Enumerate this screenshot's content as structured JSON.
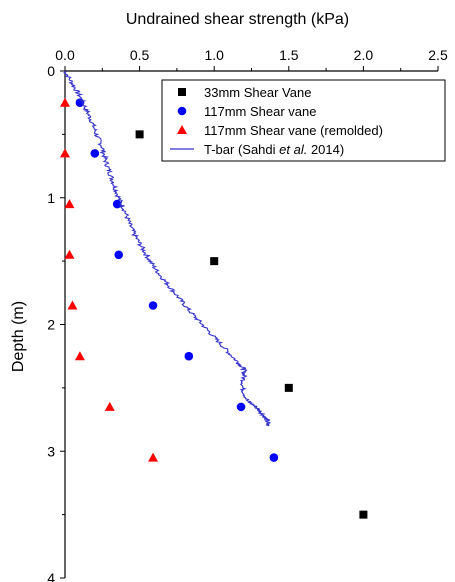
{
  "chart_data": {
    "type": "scatter",
    "xlabel": "Undrained shear strength (kPa)",
    "ylabel": "Depth (m)",
    "xlim": [
      0,
      2.5
    ],
    "ylim": [
      0,
      4
    ],
    "x_ticks": [
      "0.0",
      "0.5",
      "1.0",
      "1.5",
      "2.0",
      "2.5"
    ],
    "y_ticks": [
      "0",
      "1",
      "2",
      "3",
      "4"
    ],
    "x_axis_position": "top",
    "y_axis_inverted": true,
    "grid": false,
    "legend_position": "top-right",
    "series": [
      {
        "name": "33mm Shear Vane",
        "marker": "square",
        "color": "#000000",
        "points": [
          [
            0.5,
            0.5
          ],
          [
            1.0,
            1.5
          ],
          [
            1.5,
            2.5
          ],
          [
            2.0,
            3.5
          ]
        ]
      },
      {
        "name": "117mm Shear vane",
        "marker": "circle",
        "color": "#0000ff",
        "points": [
          [
            0.1,
            0.25
          ],
          [
            0.2,
            0.65
          ],
          [
            0.35,
            1.05
          ],
          [
            0.36,
            1.45
          ],
          [
            0.59,
            1.85
          ],
          [
            0.83,
            2.25
          ],
          [
            1.18,
            2.65
          ],
          [
            1.4,
            3.05
          ]
        ]
      },
      {
        "name": "117mm Shear vane (remolded)",
        "marker": "triangle",
        "color": "#ff0000",
        "points": [
          [
            0.0,
            0.25
          ],
          [
            0.0,
            0.65
          ],
          [
            0.03,
            1.05
          ],
          [
            0.03,
            1.45
          ],
          [
            0.05,
            1.85
          ],
          [
            0.1,
            2.25
          ],
          [
            0.3,
            2.65
          ],
          [
            0.59,
            3.05
          ]
        ]
      },
      {
        "name_parts": [
          "T-bar (Sahdi ",
          "et al.",
          " 2014)"
        ],
        "marker": "line",
        "color": "#3333cc",
        "points": [
          [
            0.0,
            0.0
          ],
          [
            0.05,
            0.1
          ],
          [
            0.1,
            0.2
          ],
          [
            0.14,
            0.3
          ],
          [
            0.18,
            0.4
          ],
          [
            0.21,
            0.5
          ],
          [
            0.25,
            0.6
          ],
          [
            0.27,
            0.7
          ],
          [
            0.3,
            0.8
          ],
          [
            0.33,
            0.9
          ],
          [
            0.36,
            1.0
          ],
          [
            0.4,
            1.1
          ],
          [
            0.43,
            1.2
          ],
          [
            0.47,
            1.3
          ],
          [
            0.52,
            1.4
          ],
          [
            0.57,
            1.5
          ],
          [
            0.63,
            1.6
          ],
          [
            0.7,
            1.7
          ],
          [
            0.77,
            1.8
          ],
          [
            0.84,
            1.9
          ],
          [
            0.92,
            2.0
          ],
          [
            1.0,
            2.1
          ],
          [
            1.08,
            2.2
          ],
          [
            1.16,
            2.3
          ],
          [
            1.2,
            2.35
          ],
          [
            1.2,
            2.4
          ],
          [
            1.19,
            2.5
          ],
          [
            1.22,
            2.6
          ],
          [
            1.28,
            2.65
          ],
          [
            1.32,
            2.7
          ],
          [
            1.35,
            2.75
          ],
          [
            1.36,
            2.8
          ]
        ]
      }
    ]
  }
}
